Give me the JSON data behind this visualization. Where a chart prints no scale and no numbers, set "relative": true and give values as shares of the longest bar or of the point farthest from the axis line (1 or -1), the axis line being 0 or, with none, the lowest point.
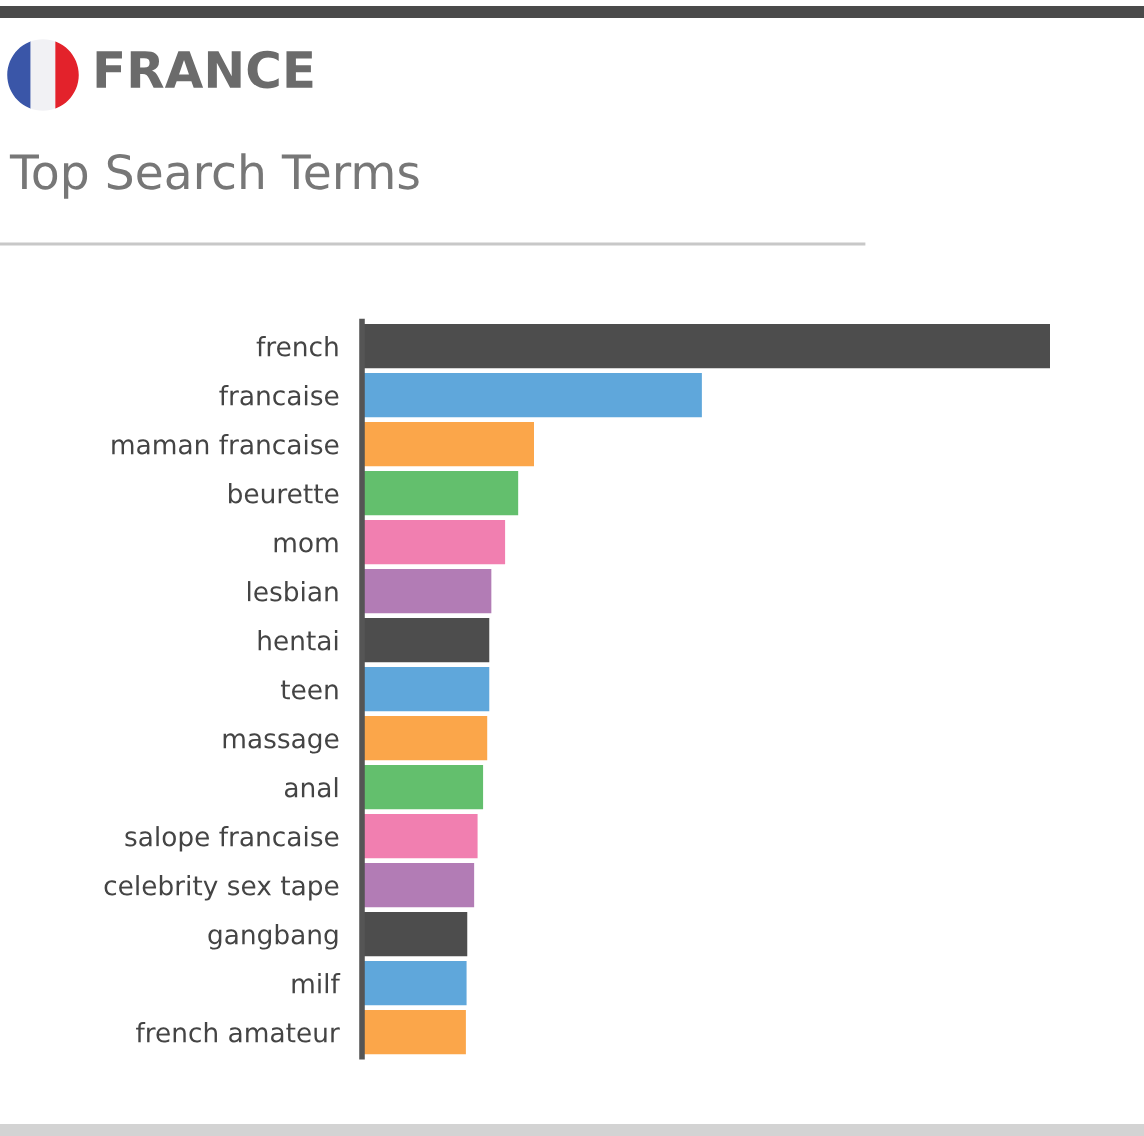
{
  "chart_data": {
    "type": "bar",
    "orientation": "horizontal",
    "relative": true,
    "title": "FRANCE",
    "subtitle": "Top Search Terms",
    "categories": [
      "french",
      "francaise",
      "maman francaise",
      "beurette",
      "mom",
      "lesbian",
      "hentai",
      "teen",
      "massage",
      "anal",
      "salope francaise",
      "celebrity sex tape",
      "gangbang",
      "milf",
      "french amateur"
    ],
    "values": [
      1,
      0.494,
      0.25,
      0.227,
      0.208,
      0.188,
      0.185,
      0.185,
      0.182,
      0.176,
      0.168,
      0.163,
      0.153,
      0.152,
      0.151
    ],
    "colors": [
      "#4d4d4d",
      "#5fa7db",
      "#fba64a",
      "#63bf6d",
      "#f17fb0",
      "#b27cb5",
      "#4d4d4d",
      "#5fa7db",
      "#fba64a",
      "#63bf6d",
      "#f17fb0",
      "#b27cb5",
      "#4d4d4d",
      "#5fa7db",
      "#fba64a"
    ]
  }
}
